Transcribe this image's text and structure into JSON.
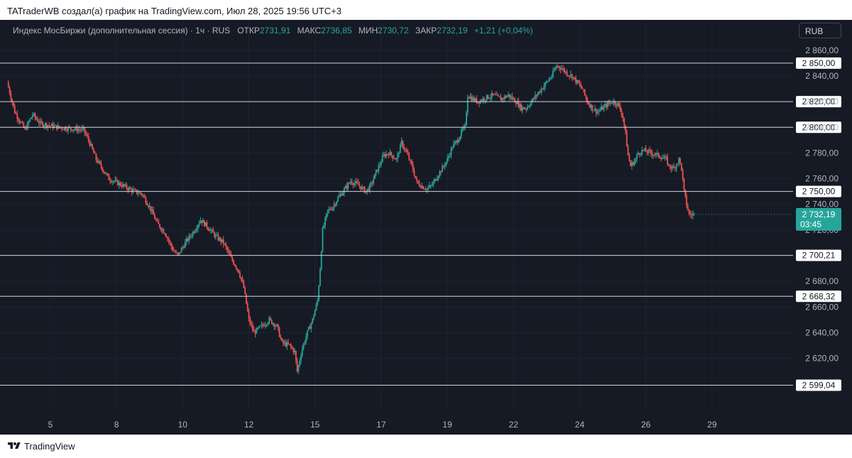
{
  "header": {
    "text": "TATraderWB создал(а) график на TradingView.com, Июл 28, 2025 19:56 UTC+3"
  },
  "legend": {
    "symbol": "Индекс МосБиржи (дополнительная сессия) · 1ч · RUS",
    "open_label": "ОТКР",
    "open_value": "2731,91",
    "high_label": "МАКС",
    "high_value": "2736,85",
    "low_label": "МИН",
    "low_value": "2730,72",
    "close_label": "ЗАКР",
    "close_value": "2732,19",
    "change": "+1,21 (+0,04%)"
  },
  "currency": "RUB",
  "footer": {
    "brand": "TradingView"
  },
  "colors": {
    "background": "#161a25",
    "up": "#26a69a",
    "down": "#ef5350",
    "level_line": "#d1d4dc",
    "axis_text": "#b2b5be"
  },
  "chart_data": {
    "type": "candlestick",
    "y_axis_ticks": [
      "2 860,00",
      "2 840,00",
      "2 820,00",
      "2 800,00",
      "2 780,00",
      "2 760,00",
      "2 740,00",
      "2 720,00",
      "2 680,00",
      "2 660,00",
      "2 640,00",
      "2 620,00"
    ],
    "y_range": [
      2596,
      2866
    ],
    "x_axis_ticks": [
      "5",
      "8",
      "10",
      "12",
      "15",
      "17",
      "19",
      "22",
      "24",
      "26",
      "29"
    ],
    "horizontal_levels": [
      {
        "value": 2850.0,
        "label": "2 850,00"
      },
      {
        "value": 2820.0,
        "label": "2 820,00"
      },
      {
        "value": 2800.0,
        "label": "2 800,00"
      },
      {
        "value": 2750.0,
        "label": "2 750,00"
      },
      {
        "value": 2700.21,
        "label": "2 700,21"
      },
      {
        "value": 2668.32,
        "label": "2 668,32"
      },
      {
        "value": 2599.04,
        "label": "2 599,04"
      }
    ],
    "last_price": {
      "value": 2732.19,
      "label": "2 732,19",
      "countdown": "03:45"
    },
    "price_anchors": [
      [
        0,
        2835
      ],
      [
        6,
        2812
      ],
      [
        14,
        2798
      ],
      [
        20,
        2810
      ],
      [
        26,
        2803
      ],
      [
        40,
        2800
      ],
      [
        60,
        2798
      ],
      [
        64,
        2790
      ],
      [
        70,
        2775
      ],
      [
        80,
        2760
      ],
      [
        90,
        2755
      ],
      [
        96,
        2752
      ],
      [
        100,
        2750
      ],
      [
        106,
        2748
      ],
      [
        112,
        2738
      ],
      [
        118,
        2725
      ],
      [
        124,
        2718
      ],
      [
        130,
        2705
      ],
      [
        134,
        2700
      ],
      [
        140,
        2710
      ],
      [
        146,
        2718
      ],
      [
        152,
        2728
      ],
      [
        158,
        2722
      ],
      [
        164,
        2715
      ],
      [
        170,
        2710
      ],
      [
        176,
        2698
      ],
      [
        182,
        2688
      ],
      [
        186,
        2675
      ],
      [
        190,
        2650
      ],
      [
        194,
        2640
      ],
      [
        200,
        2645
      ],
      [
        206,
        2650
      ],
      [
        212,
        2645
      ],
      [
        216,
        2632
      ],
      [
        222,
        2630
      ],
      [
        226,
        2625
      ],
      [
        228,
        2610
      ],
      [
        232,
        2628
      ],
      [
        236,
        2640
      ],
      [
        240,
        2650
      ],
      [
        244,
        2665
      ],
      [
        246,
        2690
      ],
      [
        248,
        2720
      ],
      [
        252,
        2735
      ],
      [
        256,
        2738
      ],
      [
        260,
        2745
      ],
      [
        264,
        2750
      ],
      [
        270,
        2758
      ],
      [
        276,
        2755
      ],
      [
        282,
        2750
      ],
      [
        286,
        2755
      ],
      [
        290,
        2765
      ],
      [
        296,
        2778
      ],
      [
        300,
        2780
      ],
      [
        306,
        2775
      ],
      [
        310,
        2788
      ],
      [
        314,
        2780
      ],
      [
        318,
        2770
      ],
      [
        322,
        2757
      ],
      [
        326,
        2754
      ],
      [
        330,
        2752
      ],
      [
        334,
        2755
      ],
      [
        338,
        2762
      ],
      [
        342,
        2768
      ],
      [
        346,
        2775
      ],
      [
        350,
        2785
      ],
      [
        354,
        2790
      ],
      [
        358,
        2798
      ],
      [
        360,
        2800
      ],
      [
        362,
        2825
      ],
      [
        366,
        2822
      ],
      [
        370,
        2820
      ],
      [
        376,
        2823
      ],
      [
        382,
        2825
      ],
      [
        388,
        2822
      ],
      [
        394,
        2825
      ],
      [
        400,
        2820
      ],
      [
        404,
        2815
      ],
      [
        408,
        2815
      ],
      [
        412,
        2820
      ],
      [
        416,
        2825
      ],
      [
        420,
        2830
      ],
      [
        424,
        2835
      ],
      [
        428,
        2840
      ],
      [
        432,
        2848
      ],
      [
        436,
        2846
      ],
      [
        440,
        2842
      ],
      [
        444,
        2840
      ],
      [
        448,
        2835
      ],
      [
        452,
        2830
      ],
      [
        456,
        2820
      ],
      [
        460,
        2815
      ],
      [
        464,
        2812
      ],
      [
        468,
        2815
      ],
      [
        472,
        2818
      ],
      [
        476,
        2820
      ],
      [
        480,
        2818
      ],
      [
        484,
        2808
      ],
      [
        486,
        2795
      ],
      [
        488,
        2778
      ],
      [
        490,
        2770
      ],
      [
        494,
        2775
      ],
      [
        496,
        2780
      ],
      [
        500,
        2782
      ],
      [
        506,
        2780
      ],
      [
        512,
        2778
      ],
      [
        518,
        2775
      ],
      [
        520,
        2770
      ],
      [
        524,
        2768
      ],
      [
        528,
        2775
      ],
      [
        530,
        2768
      ],
      [
        532,
        2750
      ],
      [
        534,
        2740
      ],
      [
        536,
        2732
      ],
      [
        538,
        2731.91
      ],
      [
        540,
        2732.19
      ]
    ],
    "x_tick_positions": [
      34,
      86,
      138,
      190,
      242,
      294,
      346,
      398,
      450,
      502,
      554
    ],
    "x_domain": [
      0,
      620
    ]
  }
}
